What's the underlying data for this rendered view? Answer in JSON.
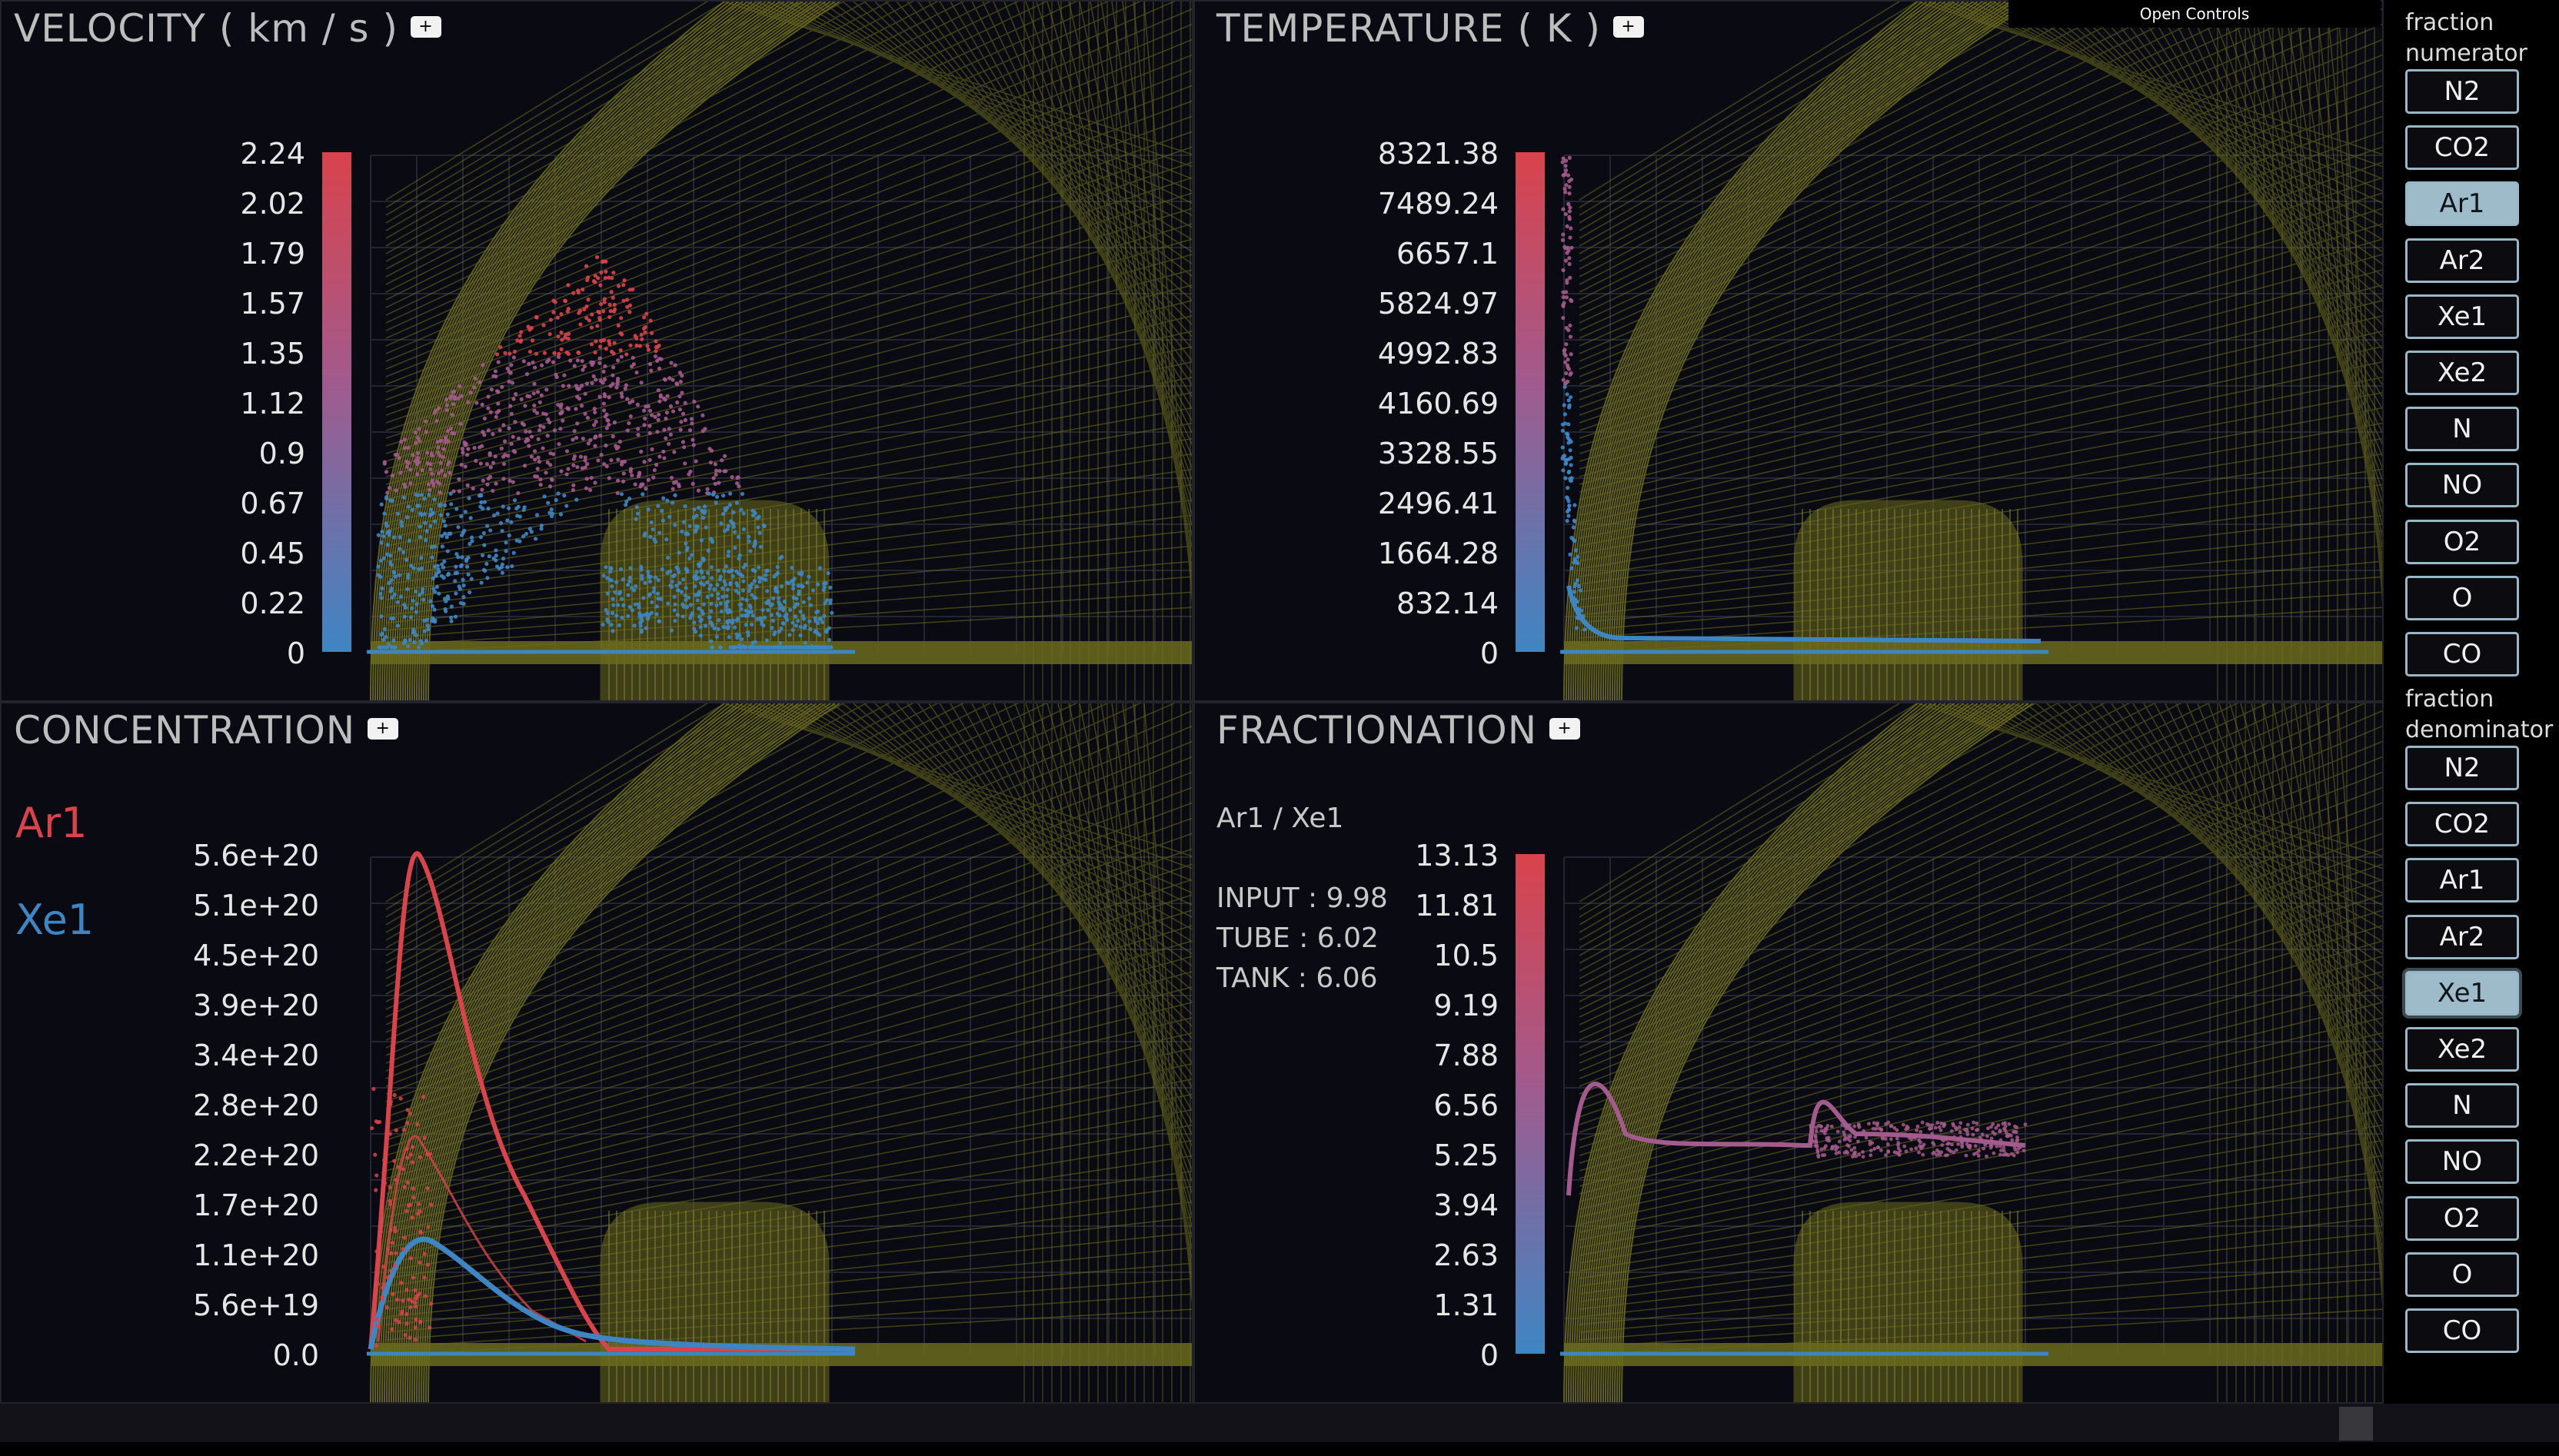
{
  "open_controls_label": "Open Controls",
  "panels": [
    {
      "id": "velocity",
      "title": "VELOCITY ( km / s )",
      "plus_label": "+",
      "colorbar_ticks": [
        "2.24",
        "2.02",
        "1.79",
        "1.57",
        "1.35",
        "1.12",
        "0.9",
        "0.67",
        "0.45",
        "0.22",
        "0"
      ]
    },
    {
      "id": "temperature",
      "title": "TEMPERATURE ( K )",
      "plus_label": "+",
      "colorbar_ticks": [
        "8321.38",
        "7489.24",
        "6657.1",
        "5824.97",
        "4992.83",
        "4160.69",
        "3328.55",
        "2496.41",
        "1664.28",
        "832.14",
        "0"
      ]
    },
    {
      "id": "concentration",
      "title": "CONCENTRATION",
      "plus_label": "+",
      "legend": [
        {
          "label": "Ar1",
          "color": "#d9434b"
        },
        {
          "label": "Xe1",
          "color": "#3e86c3"
        }
      ],
      "axis_ticks": [
        "5.6e+20",
        "5.1e+20",
        "4.5e+20",
        "3.9e+20",
        "3.4e+20",
        "2.8e+20",
        "2.2e+20",
        "1.7e+20",
        "1.1e+20",
        "5.6e+19",
        "0.0"
      ]
    },
    {
      "id": "fractionation",
      "title": "FRACTIONATION",
      "plus_label": "+",
      "ratio_label": "Ar1 / Xe1",
      "stats": [
        "INPUT : 9.98",
        "TUBE : 6.02",
        "TANK : 6.06"
      ],
      "colorbar_ticks": [
        "13.13",
        "11.81",
        "10.5",
        "9.19",
        "7.88",
        "6.56",
        "5.25",
        "3.94",
        "2.63",
        "1.31",
        "0"
      ]
    }
  ],
  "sidebar": {
    "numerator_label": "fraction numerator",
    "denominator_label": "fraction denominator",
    "numerator_species": [
      "N2",
      "CO2",
      "Ar1",
      "Ar2",
      "Xe1",
      "Xe2",
      "N",
      "NO",
      "O2",
      "O",
      "CO"
    ],
    "denominator_species": [
      "N2",
      "CO2",
      "Ar1",
      "Ar2",
      "Xe1",
      "Xe2",
      "N",
      "NO",
      "O2",
      "O",
      "CO"
    ],
    "numerator_selected": "Ar1",
    "denominator_selected": "Xe1"
  },
  "colors": {
    "mesh": "#6b6b1e",
    "high": "#d9434b",
    "mid": "#a35a8c",
    "low": "#3e86c3",
    "button_active": "#9ebbc9",
    "button_border": "#9ab7c7"
  }
}
